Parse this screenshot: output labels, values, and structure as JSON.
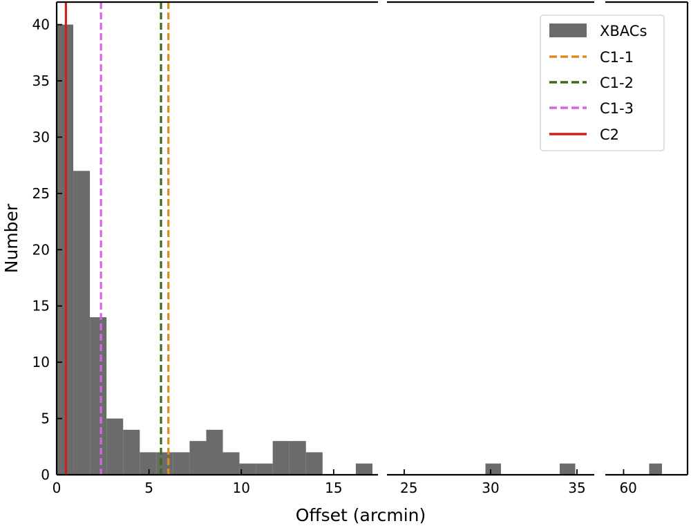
{
  "chart_data": {
    "type": "bar",
    "subtype": "broken-axis-histogram",
    "xlabel": "Offset (arcmin)",
    "ylabel": "Number",
    "ylim": [
      0,
      42
    ],
    "yticks": [
      0,
      5,
      10,
      15,
      20,
      25,
      30,
      35,
      40
    ],
    "panels": [
      {
        "xlim": [
          0,
          17.4
        ],
        "xticks": [
          0,
          5,
          10,
          15
        ]
      },
      {
        "xlim": [
          24,
          36
        ],
        "xticks": [
          25,
          30,
          35
        ]
      },
      {
        "xlim": [
          59,
          63.5
        ],
        "xticks": [
          60
        ]
      }
    ],
    "legend_position": "top-right",
    "series": [
      {
        "name": "XBACs",
        "kind": "histogram",
        "color": "#6b6b6b",
        "bins": [
          {
            "x0": 0.0,
            "x1": 0.9,
            "count": 40
          },
          {
            "x0": 0.9,
            "x1": 1.8,
            "count": 27
          },
          {
            "x0": 1.8,
            "x1": 2.7,
            "count": 14
          },
          {
            "x0": 2.7,
            "x1": 3.6,
            "count": 5
          },
          {
            "x0": 3.6,
            "x1": 4.5,
            "count": 4
          },
          {
            "x0": 4.5,
            "x1": 5.4,
            "count": 2
          },
          {
            "x0": 5.4,
            "x1": 6.3,
            "count": 2
          },
          {
            "x0": 6.3,
            "x1": 7.2,
            "count": 2
          },
          {
            "x0": 7.2,
            "x1": 8.1,
            "count": 3
          },
          {
            "x0": 8.1,
            "x1": 9.0,
            "count": 4
          },
          {
            "x0": 9.0,
            "x1": 9.9,
            "count": 2
          },
          {
            "x0": 9.9,
            "x1": 10.8,
            "count": 1
          },
          {
            "x0": 10.8,
            "x1": 11.7,
            "count": 1
          },
          {
            "x0": 11.7,
            "x1": 12.6,
            "count": 3
          },
          {
            "x0": 12.6,
            "x1": 13.5,
            "count": 3
          },
          {
            "x0": 13.5,
            "x1": 14.4,
            "count": 2
          },
          {
            "x0": 16.2,
            "x1": 17.1,
            "count": 1
          },
          {
            "x0": 29.7,
            "x1": 30.6,
            "count": 1
          },
          {
            "x0": 34.0,
            "x1": 34.9,
            "count": 1
          },
          {
            "x0": 61.4,
            "x1": 62.1,
            "count": 1
          }
        ]
      },
      {
        "name": "C1-1",
        "kind": "vline",
        "x": 6.05,
        "color": "#e08a24",
        "dashed": true
      },
      {
        "name": "C1-2",
        "kind": "vline",
        "x": 5.65,
        "color": "#3a6b16",
        "dashed": true
      },
      {
        "name": "C1-3",
        "kind": "vline",
        "x": 2.4,
        "color": "#d466e2",
        "dashed": true
      },
      {
        "name": "C2",
        "kind": "vline",
        "x": 0.5,
        "color": "#cc1f1f",
        "dashed": false
      }
    ]
  }
}
